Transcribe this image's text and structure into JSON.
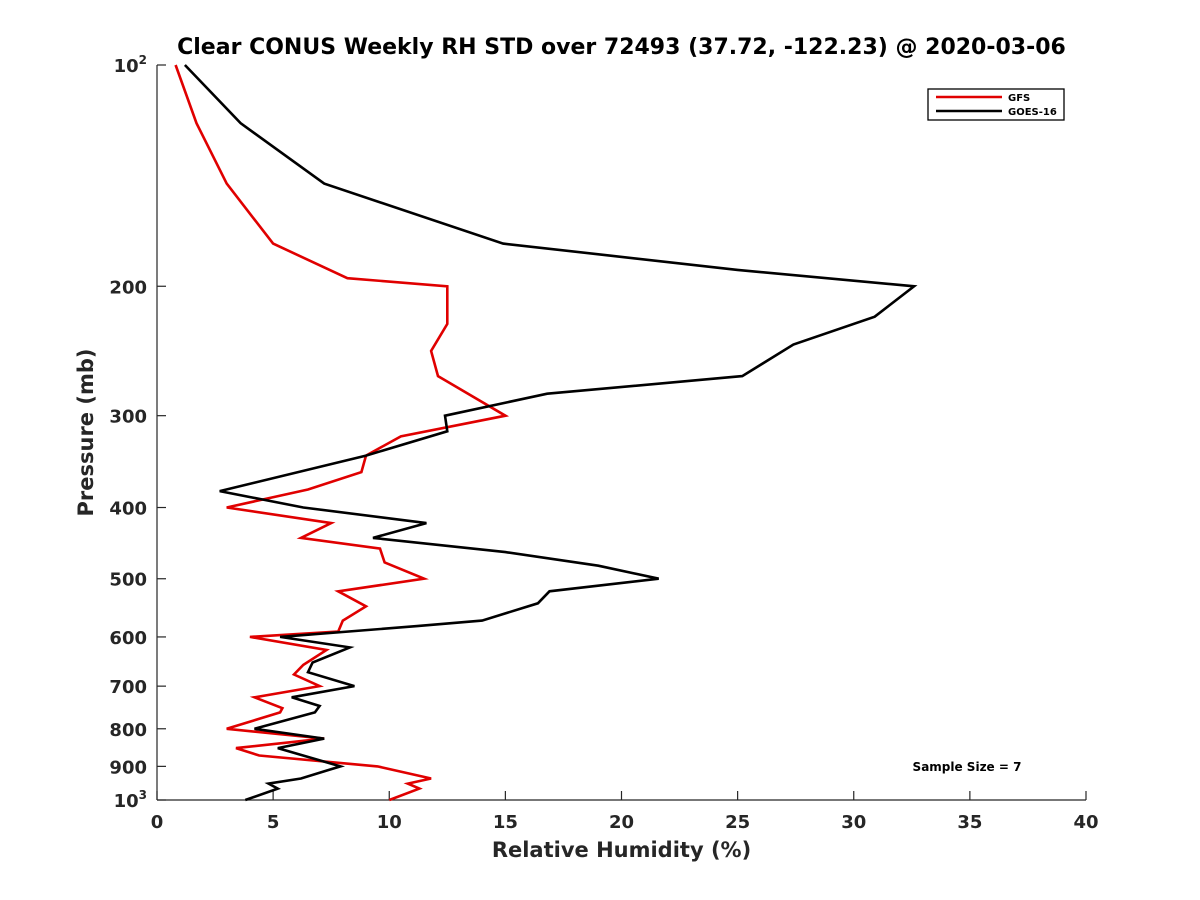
{
  "chart_data": {
    "type": "line",
    "title": "Clear CONUS Weekly RH STD over 72493 (37.72, -122.23) @ 2020-03-06",
    "xlabel": "Relative Humidity (%)",
    "ylabel": "Pressure (mb)",
    "xlim": [
      0,
      40
    ],
    "ylim": [
      100,
      1000
    ],
    "y_scale": "log",
    "y_reversed": true,
    "grid": false,
    "legend_position": "top-right",
    "x_ticks": [
      {
        "value": 0,
        "label": "0"
      },
      {
        "value": 5,
        "label": "5"
      },
      {
        "value": 10,
        "label": "10"
      },
      {
        "value": 15,
        "label": "15"
      },
      {
        "value": 20,
        "label": "20"
      },
      {
        "value": 25,
        "label": "25"
      },
      {
        "value": 30,
        "label": "30"
      },
      {
        "value": 35,
        "label": "35"
      },
      {
        "value": 40,
        "label": "40"
      }
    ],
    "y_ticks": [
      {
        "value": 100,
        "label": "10",
        "sup": "2"
      },
      {
        "value": 200,
        "label": "200",
        "sup": ""
      },
      {
        "value": 300,
        "label": "300",
        "sup": ""
      },
      {
        "value": 400,
        "label": "400",
        "sup": ""
      },
      {
        "value": 500,
        "label": "500",
        "sup": ""
      },
      {
        "value": 600,
        "label": "600",
        "sup": ""
      },
      {
        "value": 700,
        "label": "700",
        "sup": ""
      },
      {
        "value": 800,
        "label": "800",
        "sup": ""
      },
      {
        "value": 900,
        "label": "900",
        "sup": ""
      },
      {
        "value": 1000,
        "label": "10",
        "sup": "3"
      }
    ],
    "series": [
      {
        "name": "GFS",
        "color": "#e00000",
        "points": [
          [
            0.8,
            100
          ],
          [
            1.7,
            120
          ],
          [
            3.0,
            145
          ],
          [
            5.0,
            175
          ],
          [
            8.2,
            195
          ],
          [
            12.5,
            200
          ],
          [
            12.5,
            225
          ],
          [
            11.8,
            245
          ],
          [
            12.1,
            265
          ],
          [
            15.0,
            300
          ],
          [
            10.5,
            320
          ],
          [
            9.0,
            340
          ],
          [
            8.8,
            358
          ],
          [
            6.5,
            378
          ],
          [
            3.0,
            400
          ],
          [
            7.5,
            420
          ],
          [
            6.2,
            440
          ],
          [
            9.6,
            455
          ],
          [
            9.8,
            475
          ],
          [
            11.5,
            500
          ],
          [
            7.8,
            520
          ],
          [
            9.0,
            545
          ],
          [
            8.0,
            570
          ],
          [
            7.8,
            590
          ],
          [
            4.0,
            600
          ],
          [
            7.3,
            625
          ],
          [
            6.3,
            655
          ],
          [
            5.9,
            675
          ],
          [
            7.0,
            700
          ],
          [
            4.2,
            725
          ],
          [
            5.4,
            750
          ],
          [
            5.3,
            760
          ],
          [
            3.0,
            800
          ],
          [
            7.2,
            825
          ],
          [
            3.4,
            850
          ],
          [
            4.4,
            870
          ],
          [
            9.5,
            900
          ],
          [
            11.8,
            935
          ],
          [
            10.8,
            950
          ],
          [
            11.3,
            965
          ],
          [
            10.0,
            1000
          ]
        ]
      },
      {
        "name": "GOES-16",
        "color": "#000000",
        "points": [
          [
            1.2,
            100
          ],
          [
            3.6,
            120
          ],
          [
            7.2,
            145
          ],
          [
            14.9,
            175
          ],
          [
            25.0,
            190
          ],
          [
            32.6,
            200
          ],
          [
            30.9,
            220
          ],
          [
            27.4,
            240
          ],
          [
            25.2,
            265
          ],
          [
            16.8,
            280
          ],
          [
            12.4,
            300
          ],
          [
            12.5,
            315
          ],
          [
            9.0,
            340
          ],
          [
            2.7,
            380
          ],
          [
            6.3,
            400
          ],
          [
            11.6,
            420
          ],
          [
            9.3,
            440
          ],
          [
            15.0,
            460
          ],
          [
            19.0,
            480
          ],
          [
            21.6,
            500
          ],
          [
            16.9,
            520
          ],
          [
            16.4,
            540
          ],
          [
            14.0,
            570
          ],
          [
            11.2,
            580
          ],
          [
            5.3,
            600
          ],
          [
            8.3,
            620
          ],
          [
            6.7,
            650
          ],
          [
            6.5,
            670
          ],
          [
            8.5,
            700
          ],
          [
            5.8,
            725
          ],
          [
            7.0,
            745
          ],
          [
            6.8,
            760
          ],
          [
            4.2,
            800
          ],
          [
            7.2,
            825
          ],
          [
            5.2,
            850
          ],
          [
            7.9,
            900
          ],
          [
            7.4,
            910
          ],
          [
            6.2,
            935
          ],
          [
            4.8,
            950
          ],
          [
            5.2,
            965
          ],
          [
            3.8,
            1000
          ]
        ]
      }
    ],
    "annotations": [
      {
        "text": "Sample Size = 7"
      }
    ]
  }
}
